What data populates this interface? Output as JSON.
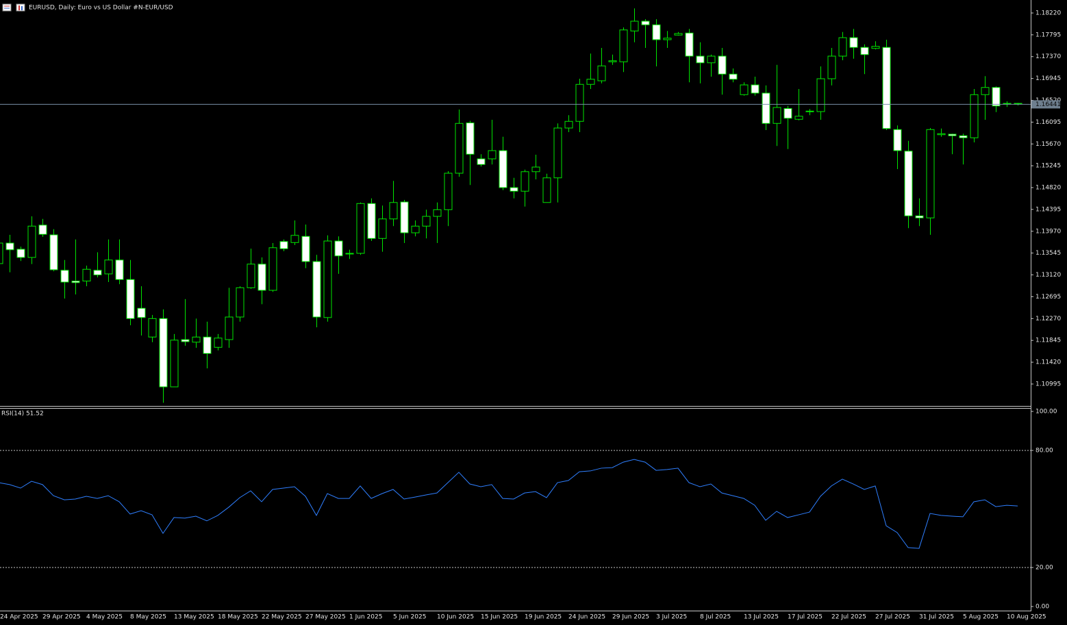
{
  "header": {
    "symbol_title": "EURUSD, Daily:  Euro vs US Dollar #N-EUR/USD"
  },
  "chart_data": [
    {
      "type": "candlestick",
      "categories": [
        "24 Apr 2025",
        null,
        null,
        null,
        "29 Apr 2025",
        null,
        null,
        null,
        "4 May 2025",
        null,
        null,
        null,
        "8 May 2025",
        null,
        null,
        null,
        "13 May 2025",
        null,
        null,
        null,
        "18 May 2025",
        null,
        null,
        null,
        "22 May 2025",
        null,
        null,
        null,
        "27 May 2025",
        null,
        null,
        null,
        "1 Jun 2025",
        null,
        null,
        null,
        "5 Jun 2025",
        null,
        null,
        null,
        "10 Jun 2025",
        null,
        null,
        null,
        "15 Jun 2025",
        null,
        null,
        null,
        "19 Jun 2025",
        null,
        null,
        null,
        "24 Jun 2025",
        null,
        null,
        null,
        "29 Jun 2025",
        null,
        null,
        null,
        "3 Jul 2025",
        null,
        null,
        null,
        "8 Jul 2025",
        null,
        null,
        null,
        "13 Jul 2025",
        null,
        null,
        null,
        "17 Jul 2025",
        null,
        null,
        null,
        "22 Jul 2025",
        null,
        null,
        null,
        "27 Jul 2025",
        null,
        null,
        null,
        "31 Jul 2025",
        null,
        null,
        null,
        "5 Aug 2025",
        null,
        null,
        null,
        "10 Aug 2025",
        null
      ],
      "open": [
        1.1334,
        1.1374,
        1.1362,
        1.1346,
        1.1409,
        1.139,
        1.1321,
        1.13,
        1.13,
        1.1321,
        1.1314,
        1.1341,
        1.1303,
        1.1247,
        1.1191,
        1.1227,
        1.1094,
        1.1186,
        1.1181,
        1.1191,
        1.1171,
        1.1186,
        1.123,
        1.1287,
        1.1333,
        1.1282,
        1.1377,
        1.1375,
        1.1387,
        1.1338,
        1.1229,
        1.1378,
        1.1353,
        1.1354,
        1.1451,
        1.1383,
        1.1421,
        1.1454,
        1.1394,
        1.1407,
        1.1426,
        1.1439,
        1.151,
        1.1608,
        1.1538,
        1.1538,
        1.1554,
        1.1482,
        1.1475,
        1.1513,
        1.1453,
        1.1501,
        1.1598,
        1.1611,
        1.1683,
        1.169,
        1.1727,
        1.1727,
        1.1787,
        1.1806,
        1.1799,
        1.177,
        1.1779,
        1.1783,
        1.1738,
        1.1725,
        1.1738,
        1.1703,
        1.1663,
        1.1682,
        1.1666,
        1.1607,
        1.1636,
        1.1615,
        1.163,
        1.163,
        1.1694,
        1.1738,
        1.1774,
        1.1755,
        1.1753,
        1.1755,
        1.1595,
        1.1553,
        1.1427,
        1.1423,
        1.1585,
        1.1586,
        1.1583,
        1.1579,
        1.1663,
        1.1677,
        1.1645,
        1.1646
      ],
      "high": [
        1.1381,
        1.139,
        1.1367,
        1.1426,
        1.1421,
        1.1401,
        1.1341,
        1.1381,
        1.133,
        1.1356,
        1.1381,
        1.1381,
        1.1341,
        1.129,
        1.1234,
        1.1245,
        1.1197,
        1.1265,
        1.1227,
        1.1221,
        1.1197,
        1.1287,
        1.129,
        1.1363,
        1.1346,
        1.1374,
        1.1381,
        1.1418,
        1.141,
        1.1351,
        1.1389,
        1.1387,
        1.1361,
        1.1453,
        1.1461,
        1.1447,
        1.1495,
        1.1458,
        1.1418,
        1.1439,
        1.1453,
        1.1514,
        1.1634,
        1.1612,
        1.1547,
        1.1614,
        1.1581,
        1.1501,
        1.1517,
        1.1546,
        1.1509,
        1.1607,
        1.1623,
        1.1694,
        1.1743,
        1.1754,
        1.1741,
        1.1794,
        1.1831,
        1.181,
        1.181,
        1.1787,
        1.1785,
        1.1791,
        1.1765,
        1.1741,
        1.1754,
        1.1714,
        1.1687,
        1.1698,
        1.1681,
        1.1721,
        1.1641,
        1.1674,
        1.1635,
        1.1718,
        1.1754,
        1.1785,
        1.1791,
        1.1761,
        1.1767,
        1.177,
        1.1603,
        1.1573,
        1.1461,
        1.1598,
        1.1597,
        1.1587,
        1.1587,
        1.1674,
        1.1699,
        1.1679,
        1.165,
        1.1647
      ],
      "low": [
        1.1327,
        1.1317,
        1.1339,
        1.1333,
        1.1386,
        1.1319,
        1.1266,
        1.1274,
        1.129,
        1.1307,
        1.1298,
        1.1294,
        1.1214,
        1.1194,
        1.1181,
        1.1063,
        1.1094,
        1.1174,
        1.117,
        1.113,
        1.1165,
        1.117,
        1.1221,
        1.1285,
        1.1255,
        1.1279,
        1.1358,
        1.137,
        1.1325,
        1.121,
        1.1221,
        1.1314,
        1.1343,
        1.1351,
        1.1378,
        1.1357,
        1.1407,
        1.1374,
        1.1387,
        1.1383,
        1.1374,
        1.1407,
        1.1503,
        1.1487,
        1.1523,
        1.1527,
        1.1477,
        1.1461,
        1.1445,
        1.1498,
        1.1453,
        1.1453,
        1.159,
        1.159,
        1.1674,
        1.1685,
        1.1721,
        1.1707,
        1.1765,
        1.1754,
        1.1718,
        1.1754,
        1.1778,
        1.1687,
        1.1685,
        1.1698,
        1.1663,
        1.1687,
        1.1661,
        1.1661,
        1.1594,
        1.1563,
        1.1557,
        1.1613,
        1.1623,
        1.1614,
        1.1681,
        1.173,
        1.1733,
        1.1703,
        1.1751,
        1.1594,
        1.1518,
        1.1403,
        1.1407,
        1.139,
        1.1581,
        1.1547,
        1.1527,
        1.157,
        1.1614,
        1.1629,
        1.1639,
        1.1642
      ],
      "close": [
        1.1374,
        1.1361,
        1.1346,
        1.1407,
        1.1391,
        1.1322,
        1.1298,
        1.1297,
        1.1323,
        1.1312,
        1.1341,
        1.1303,
        1.1227,
        1.1229,
        1.1227,
        1.1094,
        1.1185,
        1.1182,
        1.1191,
        1.1159,
        1.1189,
        1.123,
        1.1287,
        1.1333,
        1.1282,
        1.1365,
        1.1363,
        1.1389,
        1.1338,
        1.123,
        1.1378,
        1.1349,
        1.1354,
        1.1451,
        1.1383,
        1.1421,
        1.1453,
        1.1394,
        1.1407,
        1.1426,
        1.1439,
        1.151,
        1.1607,
        1.1547,
        1.1527,
        1.1554,
        1.1482,
        1.1475,
        1.1513,
        1.1522,
        1.1501,
        1.1598,
        1.1611,
        1.1683,
        1.1693,
        1.1719,
        1.1729,
        1.1789,
        1.1806,
        1.1799,
        1.177,
        1.1773,
        1.1782,
        1.1738,
        1.1725,
        1.1738,
        1.1703,
        1.1693,
        1.1682,
        1.1666,
        1.1607,
        1.1638,
        1.1617,
        1.1621,
        1.1631,
        1.1694,
        1.1738,
        1.1774,
        1.1755,
        1.1741,
        1.1757,
        1.1597,
        1.1554,
        1.1427,
        1.1423,
        1.1595,
        1.1587,
        1.1583,
        1.1579,
        1.1663,
        1.1677,
        1.1641,
        1.1646,
        1.1645
      ],
      "up_color": "#00e600",
      "down_color": "#ffffff",
      "current_price": 1.16441,
      "ylim": [
        1.10568,
        1.18473
      ],
      "yticks": [
        {
          "value": 1.1822,
          "label": "1.18220"
        },
        1.17795,
        {
          "value": 1.1737,
          "label": "1.17370"
        },
        1.16945,
        {
          "value": 1.1652,
          "label": "1.16520"
        },
        1.16095,
        {
          "value": 1.1567,
          "label": "1.15670"
        },
        1.15245,
        {
          "value": 1.1482,
          "label": "1.14820"
        },
        1.14395,
        {
          "value": 1.1397,
          "label": "1.13970"
        },
        1.13545,
        {
          "value": 1.1312,
          "label": "1.13120"
        },
        1.12695,
        {
          "value": 1.1227,
          "label": "1.12270"
        },
        1.11845,
        {
          "value": 1.1142,
          "label": "1.11420"
        },
        1.10995
      ]
    },
    {
      "type": "line",
      "title": "RSI(14) 51.52",
      "color": "#2f7fff",
      "values": [
        63.5,
        62.5,
        60.7,
        64.2,
        62.5,
        56.8,
        54.7,
        55.1,
        56.5,
        55.4,
        56.8,
        53.7,
        47.4,
        49.1,
        47.0,
        37.5,
        45.6,
        45.3,
        46.3,
        43.9,
        46.7,
        50.9,
        55.8,
        59.3,
        53.7,
        60.0,
        60.7,
        61.4,
        56.5,
        46.7,
        57.9,
        55.4,
        55.4,
        61.8,
        55.4,
        57.9,
        60.0,
        55.1,
        56.1,
        57.2,
        58.2,
        63.5,
        68.8,
        62.8,
        61.4,
        62.5,
        55.4,
        55.1,
        58.2,
        58.9,
        55.8,
        63.5,
        64.6,
        69.1,
        69.5,
        70.9,
        71.2,
        74.0,
        75.4,
        74.0,
        69.8,
        70.2,
        70.9,
        63.5,
        61.4,
        62.8,
        58.2,
        56.8,
        55.4,
        51.9,
        44.2,
        48.8,
        45.6,
        47.0,
        48.4,
        56.5,
        61.8,
        65.3,
        62.8,
        60.0,
        61.8,
        41.4,
        37.9,
        30.2,
        29.8,
        47.7,
        46.7,
        46.3,
        46.0,
        53.7,
        54.7,
        51.2,
        51.9,
        51.52
      ],
      "ylim": [
        0,
        100
      ],
      "yticks": [
        {
          "value": 100,
          "label": "100.00"
        },
        {
          "value": 80,
          "label": "80.00"
        },
        {
          "value": 20,
          "label": "20.00"
        },
        {
          "value": 0,
          "label": "0.00"
        }
      ],
      "levels": [
        80,
        20
      ]
    }
  ]
}
